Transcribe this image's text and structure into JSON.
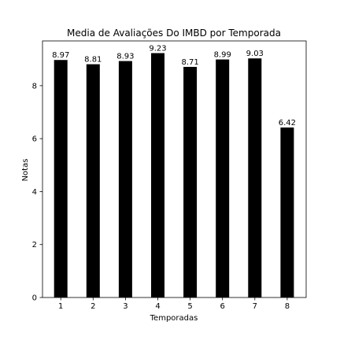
{
  "chart_data": {
    "type": "bar",
    "title": "Media de Avaliações Do IMBD por Temporada",
    "xlabel": "Temporadas",
    "ylabel": "Notas",
    "categories": [
      "1",
      "2",
      "3",
      "4",
      "5",
      "6",
      "7",
      "8"
    ],
    "values": [
      8.97,
      8.81,
      8.93,
      9.23,
      8.71,
      8.99,
      9.03,
      6.42
    ],
    "data_labels": [
      "8.97",
      "8.81",
      "8.93",
      "9.23",
      "8.71",
      "8.99",
      "9.03",
      "6.42"
    ],
    "ylim": [
      0,
      9.69
    ],
    "yticks": [
      0,
      2,
      4,
      6,
      8
    ],
    "ytick_labels": [
      "0",
      "2",
      "4",
      "6",
      "8"
    ],
    "bar_color": "#000000",
    "grid": false,
    "legend": "none"
  }
}
